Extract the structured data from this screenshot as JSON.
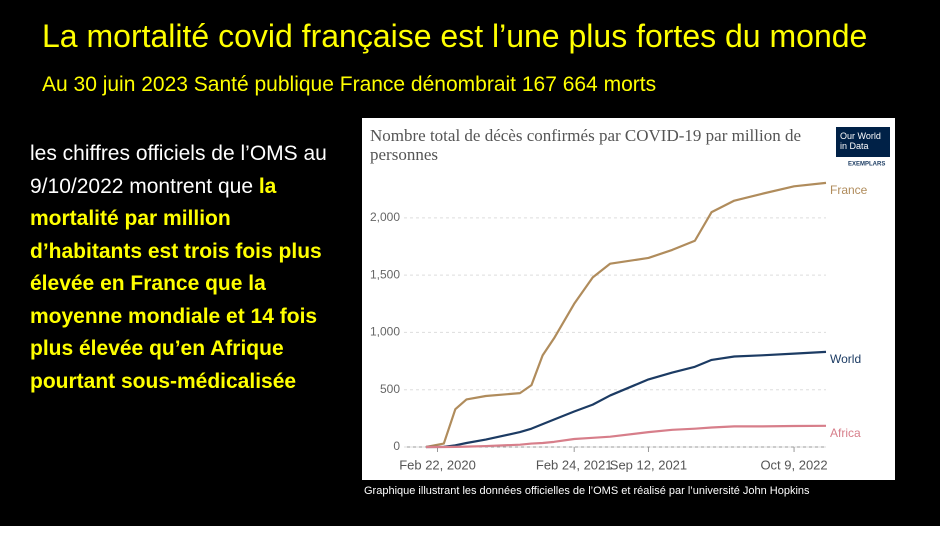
{
  "slide": {
    "title": "La mortalité covid française est l’une plus fortes du monde",
    "subtitle": "Au 30 juin 2023 Santé publique France dénombrait 167 664 morts",
    "body_plain": "les chiffres officiels de l’OMS au 9/10/2022 montrent que ",
    "body_highlight": "la mortalité par million d’habitants est trois fois plus élevée en France que la moyenne mondiale et 14 fois plus élevée qu’en Afrique pourtant sous-médicalisée",
    "caption": "Graphique illustrant les données officielles de l’OMS et réalisé par l’université John Hopkins",
    "logo": "Our World in Data",
    "logo_sub": "EXEMPLARS"
  },
  "chart_data": {
    "type": "line",
    "title": "Nombre total de décès confirmés par COVID-19 par million de personnes",
    "x": [
      "2020-01-22",
      "2020-03-10",
      "2020-04-10",
      "2020-05-10",
      "2020-07-01",
      "2020-10-01",
      "2020-11-01",
      "2020-12-01",
      "2021-01-01",
      "2021-02-24",
      "2021-04-15",
      "2021-06-01",
      "2021-09-12",
      "2021-11-15",
      "2022-01-15",
      "2022-03-01",
      "2022-05-01",
      "2022-07-15",
      "2022-10-09",
      "2023-01-03"
    ],
    "series": [
      {
        "name": "France",
        "color": "#b08c5c",
        "values": [
          0,
          30,
          330,
          415,
          445,
          470,
          540,
          800,
          950,
          1250,
          1480,
          1600,
          1650,
          1720,
          1800,
          2050,
          2150,
          2210,
          2275,
          2305
        ]
      },
      {
        "name": "World",
        "color": "#1c3b63",
        "values": [
          0,
          1,
          15,
          35,
          65,
          130,
          160,
          200,
          240,
          310,
          370,
          450,
          590,
          650,
          700,
          760,
          790,
          800,
          815,
          830
        ]
      },
      {
        "name": "Africa",
        "color": "#d77e8a",
        "values": [
          0,
          0,
          1,
          3,
          8,
          20,
          30,
          35,
          45,
          70,
          80,
          90,
          130,
          150,
          160,
          170,
          180,
          180,
          183,
          185
        ]
      }
    ],
    "xlim": [
      "2020-01-22",
      "2023-01-03"
    ],
    "xticks": [
      {
        "value": "2020-02-22",
        "label": "Feb 22, 2020"
      },
      {
        "value": "2021-02-24",
        "label": "Feb 24, 2021"
      },
      {
        "value": "2021-09-12",
        "label": "Sep 12, 2021"
      },
      {
        "value": "2022-10-09",
        "label": "Oct 9, 2022"
      }
    ],
    "ylim": [
      0,
      2400
    ],
    "yticks": [
      0,
      500,
      {
        "value": 1000,
        "label": "1,000"
      },
      {
        "value": 1500,
        "label": "1,500"
      },
      {
        "value": 2000,
        "label": "2,000"
      }
    ],
    "grid": true
  }
}
